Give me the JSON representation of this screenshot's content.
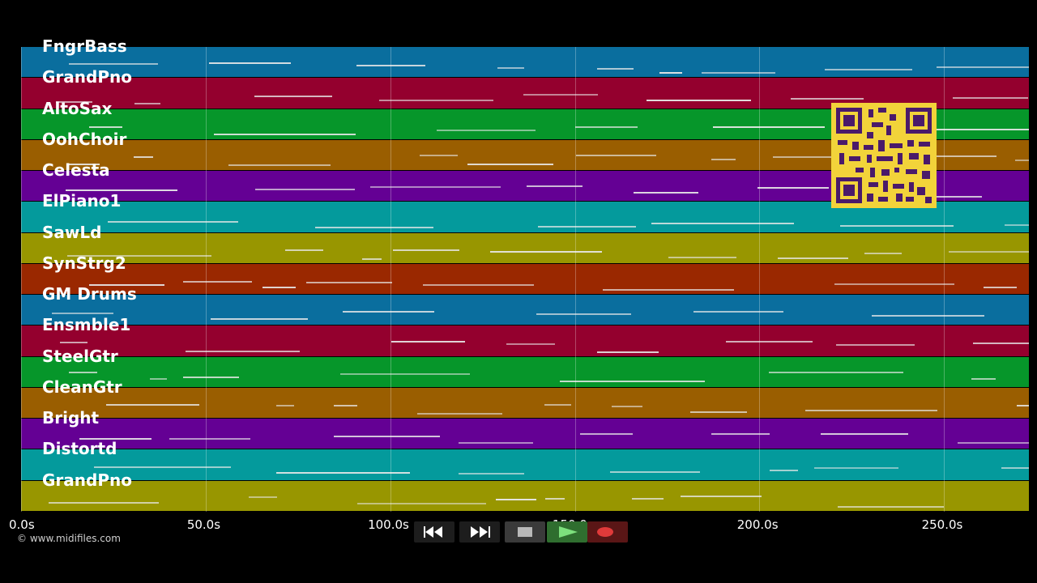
{
  "tracks": [
    {
      "name": "FngrBass",
      "color": "#0a6e9e"
    },
    {
      "name": "GrandPno",
      "color": "#94002e"
    },
    {
      "name": "AltoSax",
      "color": "#06962a"
    },
    {
      "name": "OohChoir",
      "color": "#9a5e00"
    },
    {
      "name": "Celesta",
      "color": "#640094"
    },
    {
      "name": "ElPiano1",
      "color": "#049a9c"
    },
    {
      "name": "SawLd",
      "color": "#989600"
    },
    {
      "name": "SynStrg2",
      "color": "#9a2800"
    },
    {
      "name": "GM Drums",
      "color": "#0a6e9e"
    },
    {
      "name": "Ensmble1",
      "color": "#94002e"
    },
    {
      "name": "SteelGtr",
      "color": "#06962a"
    },
    {
      "name": "CleanGtr",
      "color": "#9a5e00"
    },
    {
      "name": "Bright",
      "color": "#640094"
    },
    {
      "name": "Distortd",
      "color": "#049a9c"
    },
    {
      "name": "GrandPno",
      "color": "#989600"
    }
  ],
  "axis": {
    "min_s": 0,
    "max_s": 273,
    "ticks": [
      {
        "value": 0,
        "label": "0.0s"
      },
      {
        "value": 50,
        "label": "50.0s"
      },
      {
        "value": 100,
        "label": "100.0s"
      },
      {
        "value": 150,
        "label": "150.0s"
      },
      {
        "value": 200,
        "label": "200.0s"
      },
      {
        "value": 250,
        "label": "250.0s"
      }
    ]
  },
  "copyright": "© www.midifiles.com",
  "transport": [
    {
      "name": "rewind-button",
      "icon": "rewind-icon"
    },
    {
      "name": "fast-forward-button",
      "icon": "fast-forward-icon"
    },
    {
      "name": "stop-button",
      "icon": "stop-icon"
    },
    {
      "name": "play-button",
      "icon": "play-icon"
    },
    {
      "name": "record-button",
      "icon": "record-icon"
    }
  ]
}
